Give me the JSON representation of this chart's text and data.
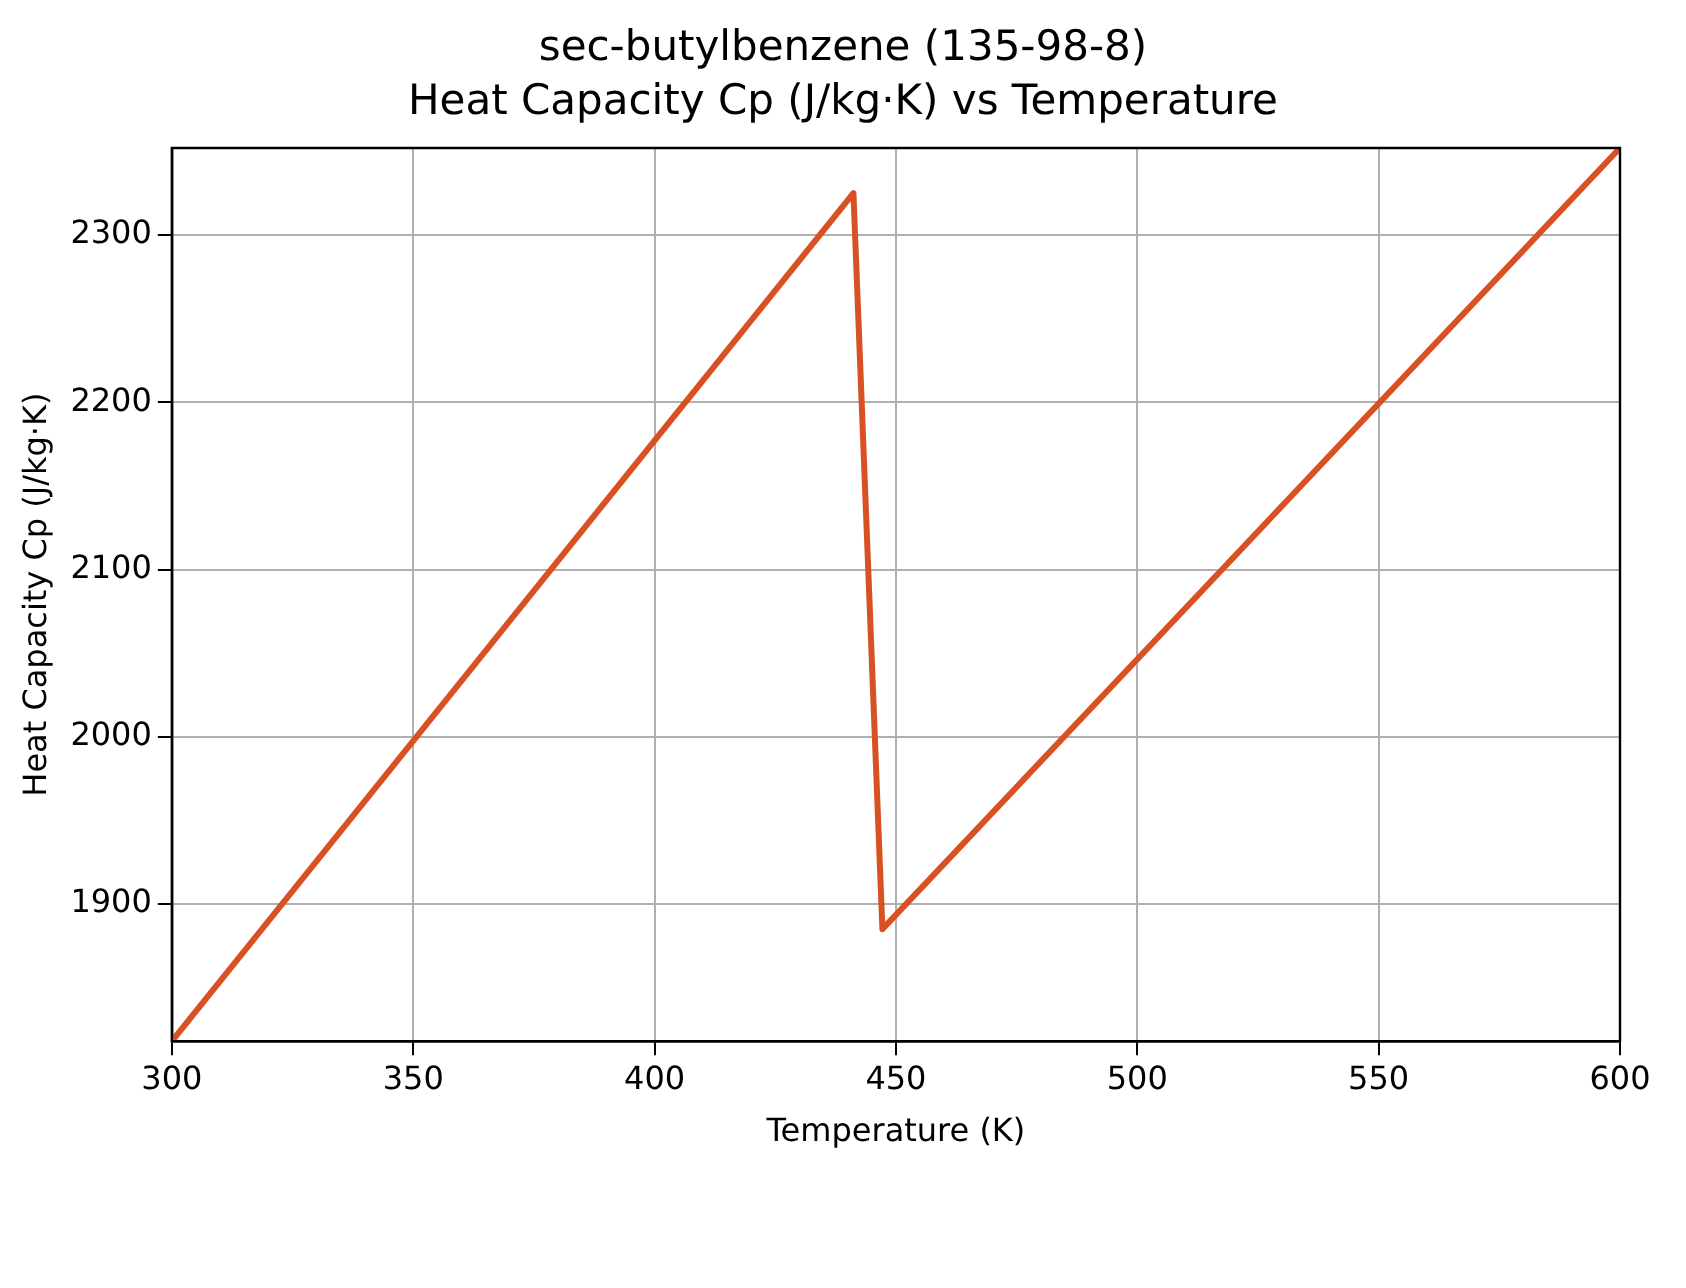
{
  "chart_data": {
    "type": "line",
    "title": "sec-butylbenzene (135-98-8)",
    "subtitle": "Heat Capacity Cp (J/kg·K) vs Temperature",
    "xlabel": "Temperature (K)",
    "ylabel": "Heat Capacity Cp (J/kg·K)",
    "series": [
      {
        "x": [
          300,
          441.2,
          447.2,
          600
        ],
        "values": [
          1818,
          2325,
          1885,
          2352
        ],
        "color": "#d95123"
      }
    ],
    "xlim": [
      300,
      600
    ],
    "xticks": [
      300,
      350,
      400,
      450,
      500,
      550,
      600
    ],
    "ylim": [
      1818,
      2352
    ],
    "yticks": [
      1900,
      2000,
      2100,
      2200,
      2300
    ],
    "grid": true,
    "legend": false,
    "marker": "none",
    "line_style": "solid"
  }
}
